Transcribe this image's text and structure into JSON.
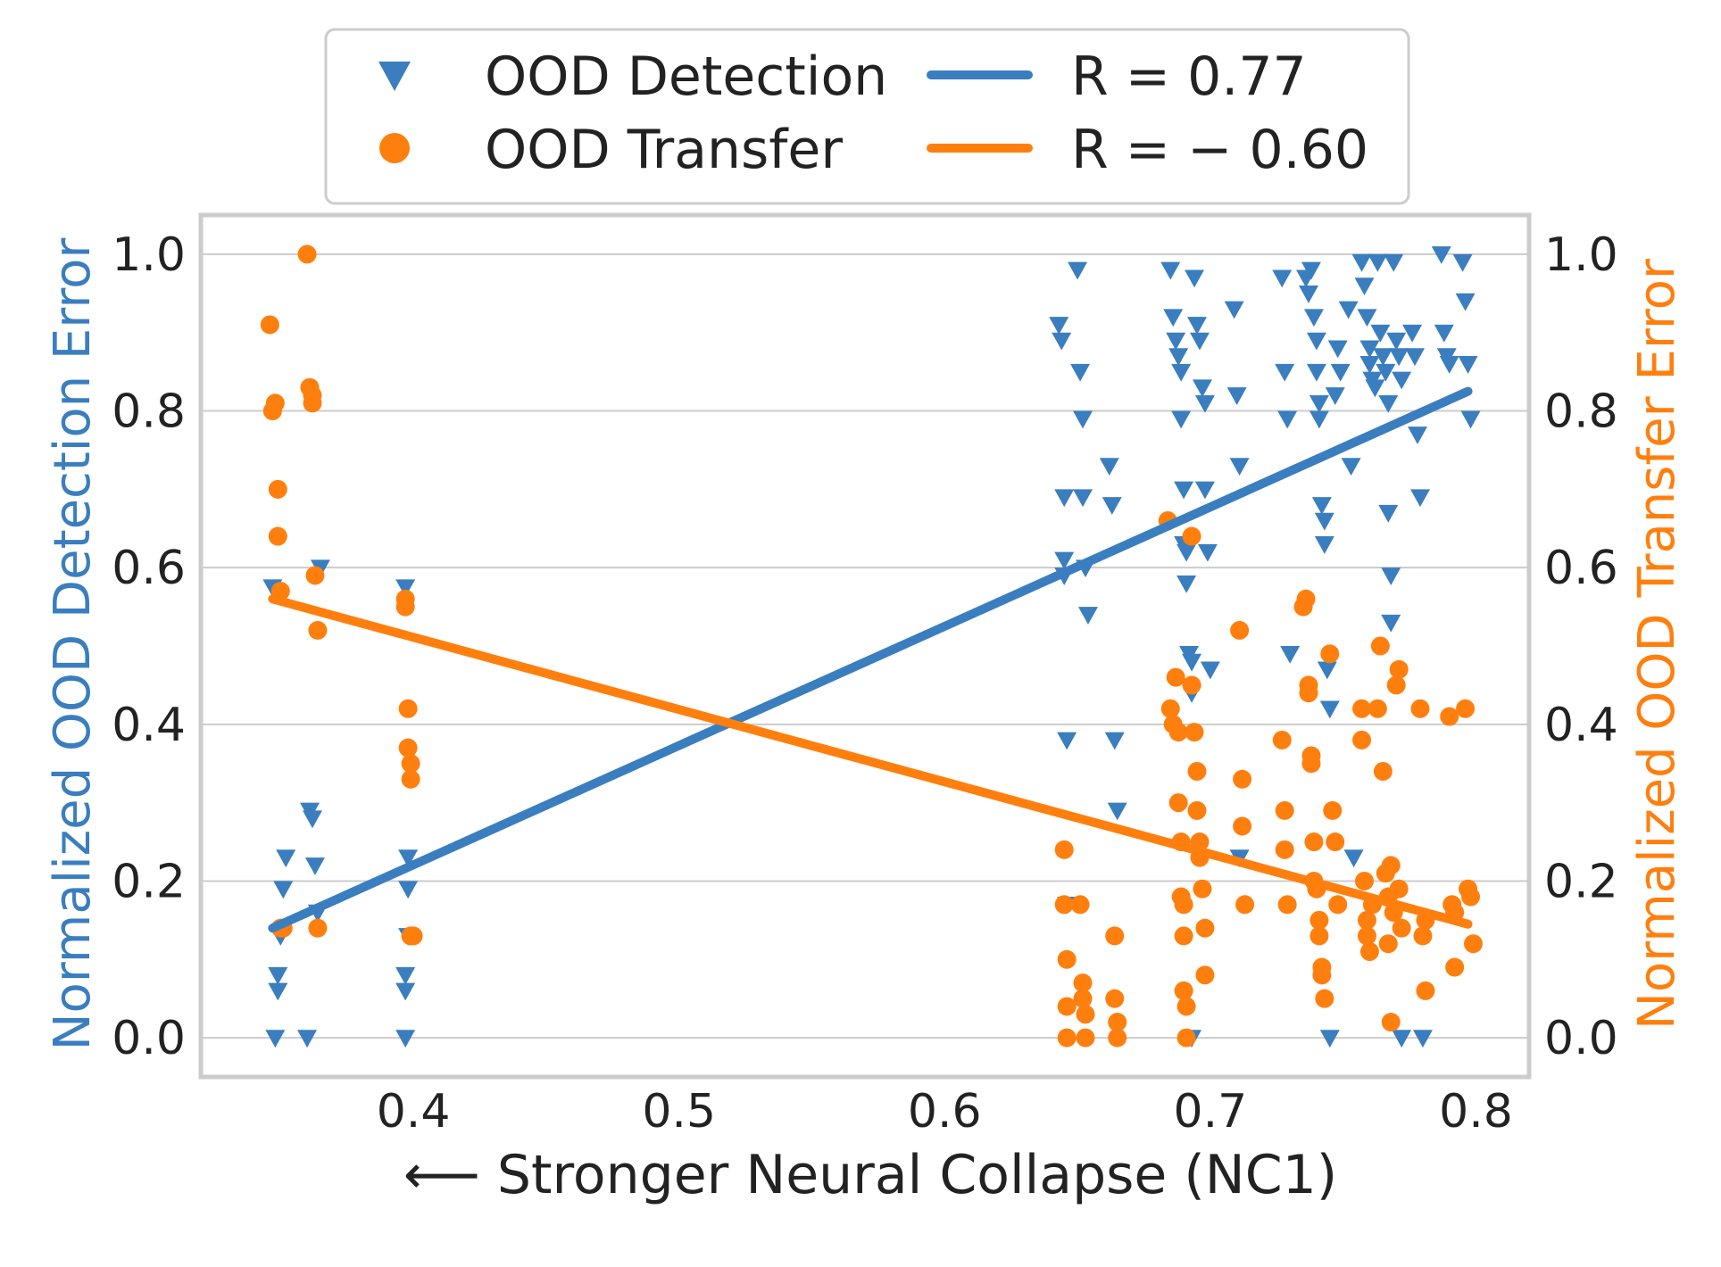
{
  "chart_data": {
    "type": "scatter",
    "title": "",
    "xlabel": "⟵ Stronger Neural Collapse (NC1)",
    "ylabel_left": "Normalized OOD Detection Error",
    "ylabel_right": "Normalized OOD Transfer Error",
    "xlim": [
      0.32,
      0.82
    ],
    "ylim": [
      -0.05,
      1.05
    ],
    "xticks": [
      "0.4",
      "0.5",
      "0.6",
      "0.7",
      "0.8"
    ],
    "yticks_left": [
      "0.0",
      "0.2",
      "0.4",
      "0.6",
      "0.8",
      "1.0"
    ],
    "yticks_right": [
      "0.0",
      "0.2",
      "0.4",
      "0.6",
      "0.8",
      "1.0"
    ],
    "grid": true,
    "legend_position": "top-center",
    "colors": {
      "detection": "#3a7ebf",
      "transfer": "#ff7f0e",
      "grid": "#cccccc",
      "frame": "#cccccc",
      "text": "#222222"
    },
    "legend": [
      {
        "label": "OOD Detection",
        "kind": "marker",
        "series": "detection"
      },
      {
        "label": "R = 0.77",
        "kind": "line",
        "series": "detection"
      },
      {
        "label": "OOD Transfer",
        "kind": "marker",
        "series": "transfer"
      },
      {
        "label": "R = − 0.60",
        "kind": "line",
        "series": "transfer"
      }
    ],
    "series": [
      {
        "name": "OOD Detection",
        "key": "detection",
        "marker": "triangle-down",
        "points": [
          [
            0.347,
            0.575
          ],
          [
            0.348,
            0.0
          ],
          [
            0.349,
            0.06
          ],
          [
            0.349,
            0.08
          ],
          [
            0.35,
            0.13
          ],
          [
            0.351,
            0.19
          ],
          [
            0.352,
            0.23
          ],
          [
            0.36,
            0.0
          ],
          [
            0.361,
            0.29
          ],
          [
            0.362,
            0.28
          ],
          [
            0.363,
            0.22
          ],
          [
            0.364,
            0.16
          ],
          [
            0.365,
            0.6
          ],
          [
            0.397,
            0.575
          ],
          [
            0.397,
            0.0
          ],
          [
            0.397,
            0.06
          ],
          [
            0.397,
            0.08
          ],
          [
            0.398,
            0.13
          ],
          [
            0.398,
            0.19
          ],
          [
            0.398,
            0.23
          ],
          [
            0.643,
            0.91
          ],
          [
            0.644,
            0.89
          ],
          [
            0.645,
            0.69
          ],
          [
            0.645,
            0.61
          ],
          [
            0.645,
            0.59
          ],
          [
            0.646,
            0.38
          ],
          [
            0.646,
            0.17
          ],
          [
            0.65,
            0.98
          ],
          [
            0.651,
            0.85
          ],
          [
            0.652,
            0.79
          ],
          [
            0.652,
            0.69
          ],
          [
            0.653,
            0.6
          ],
          [
            0.654,
            0.54
          ],
          [
            0.662,
            0.73
          ],
          [
            0.663,
            0.68
          ],
          [
            0.664,
            0.38
          ],
          [
            0.665,
            0.29
          ],
          [
            0.685,
            0.98
          ],
          [
            0.686,
            0.92
          ],
          [
            0.687,
            0.89
          ],
          [
            0.688,
            0.87
          ],
          [
            0.689,
            0.85
          ],
          [
            0.689,
            0.79
          ],
          [
            0.69,
            0.7
          ],
          [
            0.69,
            0.63
          ],
          [
            0.691,
            0.62
          ],
          [
            0.691,
            0.58
          ],
          [
            0.692,
            0.49
          ],
          [
            0.693,
            0.48
          ],
          [
            0.693,
            0.44
          ],
          [
            0.693,
            0.0
          ],
          [
            0.694,
            0.97
          ],
          [
            0.695,
            0.91
          ],
          [
            0.696,
            0.89
          ],
          [
            0.697,
            0.83
          ],
          [
            0.698,
            0.81
          ],
          [
            0.698,
            0.7
          ],
          [
            0.699,
            0.62
          ],
          [
            0.7,
            0.47
          ],
          [
            0.709,
            0.93
          ],
          [
            0.71,
            0.82
          ],
          [
            0.711,
            0.73
          ],
          [
            0.711,
            0.23
          ],
          [
            0.727,
            0.97
          ],
          [
            0.728,
            0.85
          ],
          [
            0.729,
            0.79
          ],
          [
            0.73,
            0.49
          ],
          [
            0.736,
            0.97
          ],
          [
            0.737,
            0.95
          ],
          [
            0.738,
            0.98
          ],
          [
            0.739,
            0.92
          ],
          [
            0.74,
            0.89
          ],
          [
            0.74,
            0.85
          ],
          [
            0.741,
            0.81
          ],
          [
            0.741,
            0.79
          ],
          [
            0.742,
            0.68
          ],
          [
            0.743,
            0.66
          ],
          [
            0.743,
            0.63
          ],
          [
            0.744,
            0.47
          ],
          [
            0.745,
            0.42
          ],
          [
            0.745,
            0.0
          ],
          [
            0.747,
            0.82
          ],
          [
            0.748,
            0.88
          ],
          [
            0.749,
            0.85
          ],
          [
            0.752,
            0.93
          ],
          [
            0.753,
            0.73
          ],
          [
            0.754,
            0.23
          ],
          [
            0.757,
            0.99
          ],
          [
            0.758,
            0.96
          ],
          [
            0.759,
            0.92
          ],
          [
            0.76,
            0.88
          ],
          [
            0.76,
            0.86
          ],
          [
            0.761,
            0.84
          ],
          [
            0.762,
            0.83
          ],
          [
            0.763,
            0.99
          ],
          [
            0.764,
            0.9
          ],
          [
            0.765,
            0.87
          ],
          [
            0.766,
            0.85
          ],
          [
            0.767,
            0.81
          ],
          [
            0.767,
            0.67
          ],
          [
            0.768,
            0.59
          ],
          [
            0.768,
            0.53
          ],
          [
            0.769,
            0.99
          ],
          [
            0.77,
            0.89
          ],
          [
            0.771,
            0.87
          ],
          [
            0.772,
            0.84
          ],
          [
            0.772,
            0.0
          ],
          [
            0.776,
            0.9
          ],
          [
            0.777,
            0.87
          ],
          [
            0.778,
            0.77
          ],
          [
            0.779,
            0.69
          ],
          [
            0.78,
            0.0
          ],
          [
            0.787,
            1.0
          ],
          [
            0.788,
            0.9
          ],
          [
            0.789,
            0.87
          ],
          [
            0.79,
            0.86
          ],
          [
            0.795,
            0.99
          ],
          [
            0.796,
            0.94
          ],
          [
            0.797,
            0.86
          ],
          [
            0.798,
            0.79
          ]
        ]
      },
      {
        "name": "OOD Transfer",
        "key": "transfer",
        "marker": "circle",
        "points": [
          [
            0.346,
            0.91
          ],
          [
            0.347,
            0.8
          ],
          [
            0.348,
            0.81
          ],
          [
            0.349,
            0.7
          ],
          [
            0.349,
            0.64
          ],
          [
            0.35,
            0.57
          ],
          [
            0.35,
            0.14
          ],
          [
            0.351,
            0.14
          ],
          [
            0.36,
            1.0
          ],
          [
            0.361,
            0.83
          ],
          [
            0.362,
            0.82
          ],
          [
            0.362,
            0.81
          ],
          [
            0.363,
            0.59
          ],
          [
            0.364,
            0.52
          ],
          [
            0.364,
            0.14
          ],
          [
            0.397,
            0.56
          ],
          [
            0.397,
            0.55
          ],
          [
            0.398,
            0.42
          ],
          [
            0.398,
            0.37
          ],
          [
            0.399,
            0.35
          ],
          [
            0.399,
            0.33
          ],
          [
            0.399,
            0.13
          ],
          [
            0.4,
            0.13
          ],
          [
            0.645,
            0.24
          ],
          [
            0.645,
            0.17
          ],
          [
            0.646,
            0.1
          ],
          [
            0.646,
            0.04
          ],
          [
            0.646,
            0.0
          ],
          [
            0.651,
            0.17
          ],
          [
            0.652,
            0.07
          ],
          [
            0.652,
            0.05
          ],
          [
            0.653,
            0.03
          ],
          [
            0.653,
            0.0
          ],
          [
            0.664,
            0.13
          ],
          [
            0.664,
            0.05
          ],
          [
            0.665,
            0.02
          ],
          [
            0.665,
            0.0
          ],
          [
            0.684,
            0.66
          ],
          [
            0.685,
            0.42
          ],
          [
            0.686,
            0.4
          ],
          [
            0.687,
            0.46
          ],
          [
            0.688,
            0.39
          ],
          [
            0.688,
            0.3
          ],
          [
            0.689,
            0.25
          ],
          [
            0.689,
            0.18
          ],
          [
            0.69,
            0.17
          ],
          [
            0.69,
            0.13
          ],
          [
            0.69,
            0.06
          ],
          [
            0.691,
            0.04
          ],
          [
            0.691,
            0.0
          ],
          [
            0.693,
            0.64
          ],
          [
            0.693,
            0.45
          ],
          [
            0.694,
            0.39
          ],
          [
            0.695,
            0.34
          ],
          [
            0.695,
            0.29
          ],
          [
            0.696,
            0.25
          ],
          [
            0.696,
            0.23
          ],
          [
            0.697,
            0.19
          ],
          [
            0.698,
            0.14
          ],
          [
            0.698,
            0.08
          ],
          [
            0.711,
            0.52
          ],
          [
            0.712,
            0.33
          ],
          [
            0.712,
            0.27
          ],
          [
            0.713,
            0.17
          ],
          [
            0.727,
            0.38
          ],
          [
            0.728,
            0.29
          ],
          [
            0.728,
            0.24
          ],
          [
            0.729,
            0.17
          ],
          [
            0.735,
            0.55
          ],
          [
            0.736,
            0.56
          ],
          [
            0.737,
            0.45
          ],
          [
            0.737,
            0.44
          ],
          [
            0.738,
            0.36
          ],
          [
            0.738,
            0.35
          ],
          [
            0.739,
            0.25
          ],
          [
            0.739,
            0.2
          ],
          [
            0.74,
            0.19
          ],
          [
            0.741,
            0.15
          ],
          [
            0.741,
            0.13
          ],
          [
            0.742,
            0.09
          ],
          [
            0.742,
            0.08
          ],
          [
            0.743,
            0.05
          ],
          [
            0.745,
            0.49
          ],
          [
            0.746,
            0.29
          ],
          [
            0.747,
            0.25
          ],
          [
            0.748,
            0.17
          ],
          [
            0.757,
            0.42
          ],
          [
            0.757,
            0.38
          ],
          [
            0.758,
            0.2
          ],
          [
            0.759,
            0.15
          ],
          [
            0.759,
            0.13
          ],
          [
            0.76,
            0.11
          ],
          [
            0.761,
            0.17
          ],
          [
            0.763,
            0.42
          ],
          [
            0.764,
            0.5
          ],
          [
            0.765,
            0.34
          ],
          [
            0.766,
            0.21
          ],
          [
            0.767,
            0.18
          ],
          [
            0.767,
            0.12
          ],
          [
            0.768,
            0.02
          ],
          [
            0.768,
            0.22
          ],
          [
            0.769,
            0.16
          ],
          [
            0.77,
            0.45
          ],
          [
            0.771,
            0.47
          ],
          [
            0.771,
            0.19
          ],
          [
            0.772,
            0.14
          ],
          [
            0.779,
            0.42
          ],
          [
            0.78,
            0.13
          ],
          [
            0.781,
            0.15
          ],
          [
            0.781,
            0.06
          ],
          [
            0.79,
            0.41
          ],
          [
            0.791,
            0.17
          ],
          [
            0.792,
            0.16
          ],
          [
            0.792,
            0.09
          ],
          [
            0.796,
            0.42
          ],
          [
            0.797,
            0.19
          ],
          [
            0.798,
            0.18
          ],
          [
            0.799,
            0.12
          ]
        ]
      }
    ],
    "fit_lines": [
      {
        "series": "detection",
        "label": "R = 0.77",
        "x": [
          0.347,
          0.797
        ],
        "y": [
          0.14,
          0.825
        ]
      },
      {
        "series": "transfer",
        "label": "R = − 0.60",
        "x": [
          0.347,
          0.797
        ],
        "y": [
          0.56,
          0.145
        ]
      }
    ]
  }
}
